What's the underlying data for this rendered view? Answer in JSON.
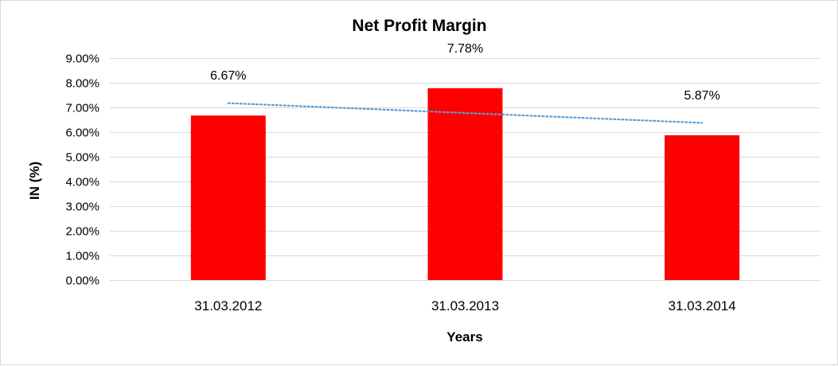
{
  "chart_data": {
    "type": "bar",
    "title": "Net Profit Margin",
    "xlabel": "Years",
    "ylabel": "IN (%)",
    "categories": [
      "31.03.2012",
      "31.03.2013",
      "31.03.2014"
    ],
    "values": [
      6.67,
      7.78,
      5.87
    ],
    "data_labels": [
      "6.67%",
      "7.78%",
      "5.87%"
    ],
    "ylim": [
      0,
      9
    ],
    "ytick_step": 1,
    "yticks": [
      "0.00%",
      "1.00%",
      "2.00%",
      "3.00%",
      "4.00%",
      "5.00%",
      "6.00%",
      "7.00%",
      "8.00%",
      "9.00%"
    ],
    "trendline": {
      "type": "linear",
      "style": "dotted"
    },
    "grid": true,
    "legend": "none"
  },
  "colors": {
    "bar": "#ff0000",
    "trendline": "#5b9bd5",
    "grid": "#d9d9d9"
  }
}
